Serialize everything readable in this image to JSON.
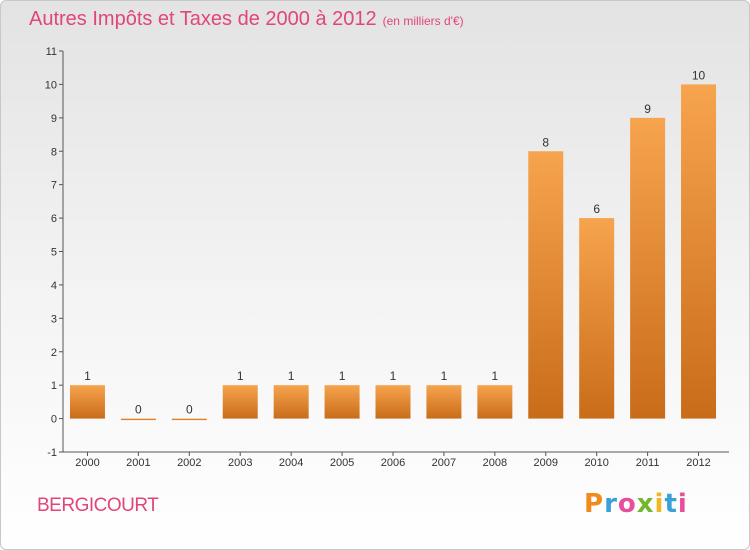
{
  "header": {
    "title": "Autres Impôts et Taxes de 2000 à 2012",
    "unit": "(en milliers d'€)"
  },
  "footer": {
    "place": "BERGICOURT",
    "brand_letters": [
      "P",
      "r",
      "o",
      "x",
      "i",
      "t",
      "i"
    ],
    "brand_colors": [
      "#f08a1c",
      "#3aa0d8",
      "#e94e9b",
      "#74b72e",
      "#f0b81c",
      "#3aa0d8",
      "#e94e9b"
    ]
  },
  "chart_data": {
    "type": "bar",
    "title": "Autres Impôts et Taxes de 2000 à 2012",
    "subtitle": "(en milliers d'€)",
    "categories": [
      "2000",
      "2001",
      "2002",
      "2003",
      "2004",
      "2005",
      "2006",
      "2007",
      "2008",
      "2009",
      "2010",
      "2011",
      "2012"
    ],
    "values": [
      1,
      0,
      0,
      1,
      1,
      1,
      1,
      1,
      1,
      8,
      6,
      9,
      10
    ],
    "data_labels": [
      "1",
      "0",
      "0",
      "1",
      "1",
      "1",
      "1",
      "1",
      "1",
      "8",
      "6",
      "9",
      "10"
    ],
    "ylim": [
      -1,
      11
    ],
    "yticks": [
      "-1",
      "0",
      "1",
      "2",
      "3",
      "4",
      "5",
      "6",
      "7",
      "8",
      "9",
      "10",
      "11"
    ],
    "grid": false,
    "colors": {
      "bar_light": "#f7a44e",
      "bar_dark": "#c96c1a",
      "axis": "#555555",
      "label": "#333333"
    }
  }
}
